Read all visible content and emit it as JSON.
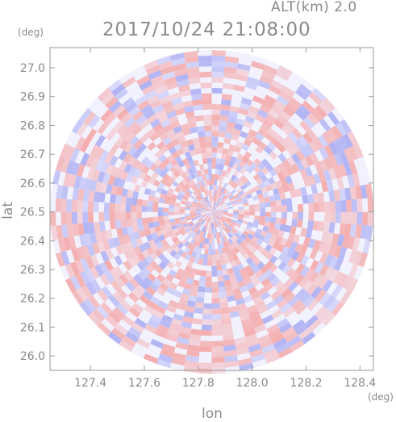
{
  "header": {
    "altitude": "ALT(km) 2.0",
    "timestamp": "2017/10/24 21:08:00"
  },
  "axes": {
    "y_unit": "(deg)",
    "x_unit": "(deg)",
    "y_label": "lat",
    "x_label": "lon"
  },
  "colors": {
    "frame": "#9a9a9a",
    "positive": "#f4a6a6",
    "negative": "#a8abf2",
    "neutral": "#f2f2ff"
  },
  "chart_data": {
    "type": "heatmap",
    "description_free_values": true,
    "x_label": "lon",
    "y_label": "lat",
    "xlim": [
      127.25,
      128.45
    ],
    "ylim": [
      25.95,
      27.07
    ],
    "x_ticks": [
      127.4,
      127.6,
      127.8,
      128.0,
      128.2,
      128.4
    ],
    "x_tick_labels": [
      "127.4",
      "127.6",
      "127.8",
      "128.0",
      "128.2",
      "128.4"
    ],
    "y_ticks": [
      26.0,
      26.1,
      26.2,
      26.3,
      26.4,
      26.5,
      26.6,
      26.7,
      26.8,
      26.9,
      27.0
    ],
    "y_tick_labels": [
      "26.0",
      "26.1",
      "26.2",
      "26.3",
      "26.4",
      "26.5",
      "26.6",
      "26.7",
      "26.8",
      "26.9",
      "27.0"
    ],
    "center": [
      127.85,
      26.5
    ],
    "radius_deg": 0.6,
    "grid": false
  }
}
